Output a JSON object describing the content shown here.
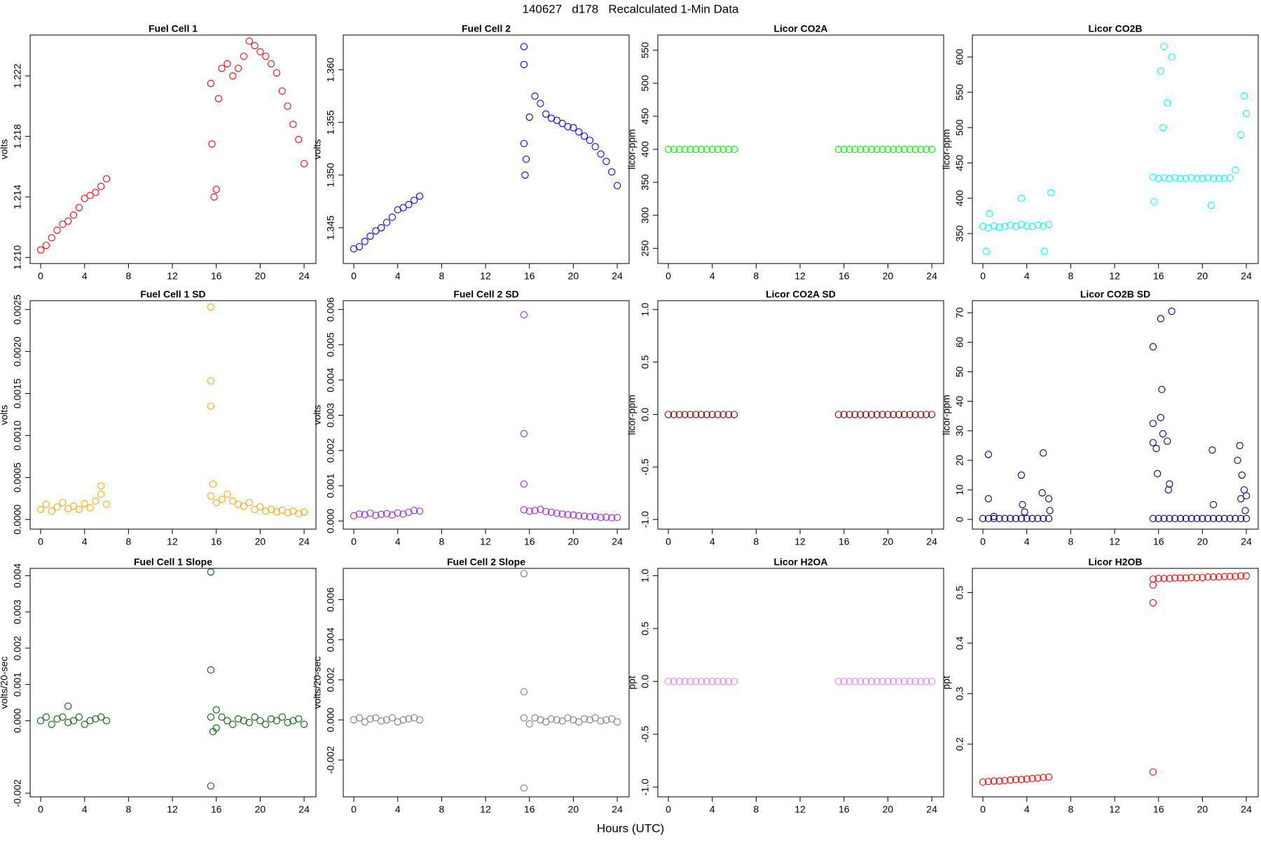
{
  "title": "140627   d178   Recalculated 1-Min Data",
  "xlabel": "Hours (UTC)",
  "chart_data": [
    {
      "type": "scatter",
      "title": "Fuel Cell 1",
      "ylabel": "volts",
      "color": "#ff0000",
      "xlim": [
        -0.96,
        25.08
      ],
      "xticks": [
        0,
        4,
        8,
        12,
        16,
        20,
        24
      ],
      "ylim": [
        1.2096,
        1.2247
      ],
      "yticks": [
        {
          "value": 1.21,
          "label": "1.210"
        },
        1.214,
        1.218,
        1.222
      ],
      "x": [
        0,
        0.5,
        1,
        1.5,
        2,
        2.5,
        3,
        3.5,
        4,
        4.5,
        5,
        5.5,
        6,
        15.5,
        16,
        16.5,
        17,
        17.5,
        18,
        18.5,
        19,
        19.5,
        20,
        20.5,
        21,
        21.5,
        22,
        22.5,
        23,
        23.5,
        24,
        15.6,
        15.8,
        16.2
      ],
      "values": [
        1.2105,
        1.2108,
        1.2113,
        1.2118,
        1.2122,
        1.2124,
        1.2128,
        1.2133,
        1.2139,
        1.2141,
        1.2143,
        1.2147,
        1.2152,
        1.2215,
        1.2145,
        1.2225,
        1.2228,
        1.222,
        1.2225,
        1.2233,
        1.2243,
        1.224,
        1.2236,
        1.2233,
        1.2228,
        1.2222,
        1.221,
        1.22,
        1.2188,
        1.2178,
        1.2162,
        1.2175,
        1.214,
        1.2205
      ]
    },
    {
      "type": "scatter",
      "title": "Fuel Cell 2",
      "ylabel": "volts",
      "color": "#0000ff",
      "xlim": [
        -0.96,
        25.08
      ],
      "xticks": [
        0,
        4,
        8,
        12,
        16,
        20,
        24
      ],
      "ylim": [
        1.3416,
        1.3633
      ],
      "yticks": [
        1.345,
        {
          "value": 1.35,
          "label": "1.350"
        },
        1.355,
        {
          "value": 1.36,
          "label": "1.360"
        }
      ],
      "x": [
        0,
        0.5,
        1,
        1.5,
        2,
        2.5,
        3,
        3.5,
        4,
        4.5,
        5,
        5.5,
        6,
        15.5,
        16,
        16.5,
        17,
        17.5,
        18,
        18.5,
        19,
        19.5,
        20,
        20.5,
        21,
        21.5,
        22,
        22.5,
        23,
        23.5,
        24,
        15.5,
        15.5,
        15.6,
        15.7
      ],
      "values": [
        1.343,
        1.3432,
        1.3437,
        1.3442,
        1.3447,
        1.345,
        1.3455,
        1.346,
        1.3467,
        1.3469,
        1.3472,
        1.3476,
        1.348,
        1.353,
        1.3555,
        1.3575,
        1.3568,
        1.3558,
        1.3554,
        1.3552,
        1.3549,
        1.3546,
        1.3545,
        1.3541,
        1.3537,
        1.3533,
        1.3527,
        1.352,
        1.3513,
        1.3503,
        1.349,
        1.3622,
        1.3605,
        1.35,
        1.3515
      ]
    },
    {
      "type": "scatter",
      "title": "Licor CO2A",
      "ylabel": "licor-ppm",
      "color": "#00ff00",
      "xlim": [
        -0.96,
        25.08
      ],
      "xticks": [
        0,
        4,
        8,
        12,
        16,
        20,
        24
      ],
      "ylim": [
        227,
        573
      ],
      "yticks": [
        250,
        300,
        350,
        400,
        450,
        500,
        550
      ],
      "x": [
        0,
        0.5,
        1,
        1.5,
        2,
        2.5,
        3,
        3.5,
        4,
        4.5,
        5,
        5.5,
        6,
        15.5,
        16,
        16.5,
        17,
        17.5,
        18,
        18.5,
        19,
        19.5,
        20,
        20.5,
        21,
        21.5,
        22,
        22.5,
        23,
        23.5,
        24
      ],
      "values": [
        400,
        400,
        400,
        400,
        400,
        400,
        400,
        400,
        400,
        400,
        400,
        400,
        400,
        400,
        400,
        400,
        400,
        400,
        400,
        400,
        400,
        400,
        400,
        400,
        400,
        400,
        400,
        400,
        400,
        400,
        400
      ]
    },
    {
      "type": "scatter",
      "title": "Licor CO2B",
      "ylabel": "licor-ppm",
      "color": "#00ffff",
      "xlim": [
        -0.96,
        25.08
      ],
      "xticks": [
        0,
        4,
        8,
        12,
        16,
        20,
        24
      ],
      "ylim": [
        307.6,
        631
      ],
      "yticks": [
        350,
        400,
        450,
        500,
        550,
        600
      ],
      "x": [
        0,
        0.5,
        1,
        1.5,
        2,
        2.5,
        3,
        3.5,
        4,
        4.5,
        5,
        5.5,
        6,
        15.5,
        16,
        16.5,
        17,
        17.5,
        18,
        18.5,
        19,
        19.5,
        20,
        20.5,
        21,
        21.5,
        22,
        22.5,
        23,
        23.5,
        24,
        0.3,
        0.6,
        3.5,
        5.6,
        6.2,
        15.6,
        16.2,
        16.5,
        16.8,
        17.2,
        16.4,
        20.8,
        23.8
      ],
      "values": [
        360,
        358,
        361,
        359,
        360,
        362,
        360,
        363,
        361,
        360,
        362,
        361,
        363,
        430,
        428,
        429,
        428,
        429,
        428,
        428,
        429,
        428,
        428,
        429,
        428,
        428,
        428,
        429,
        440,
        490,
        520,
        325,
        378,
        400,
        325,
        408,
        395,
        580,
        615,
        535,
        600,
        500,
        390,
        545
      ]
    },
    {
      "type": "scatter",
      "title": "Fuel Cell 1 SD",
      "ylabel": "volts",
      "color": "#ffa500",
      "xlim": [
        -0.96,
        25.08
      ],
      "xticks": [
        0,
        4,
        8,
        12,
        16,
        20,
        24
      ],
      "ylim": [
        -0.000115,
        0.002606
      ],
      "yticks": [
        {
          "value": 0,
          "label": "0.0000"
        },
        0.0005,
        {
          "value": 0.001,
          "label": "0.0010"
        },
        0.0015,
        {
          "value": 0.002,
          "label": "0.0020"
        },
        0.0025
      ],
      "x": [
        0,
        0.5,
        1,
        1.5,
        2,
        2.5,
        3,
        3.5,
        4,
        4.5,
        5,
        5.5,
        6,
        15.5,
        16,
        16.5,
        17,
        17.5,
        18,
        18.5,
        19,
        19.5,
        20,
        20.5,
        21,
        21.5,
        22,
        22.5,
        23,
        23.5,
        24,
        15.5,
        15.5,
        15.5,
        5.5,
        15.7
      ],
      "values": [
        0.00012,
        0.00018,
        0.0001,
        0.00015,
        0.0002,
        0.00013,
        0.00016,
        0.00012,
        0.00019,
        0.00014,
        0.00022,
        0.0003,
        0.00018,
        0.00028,
        0.0002,
        0.00024,
        0.0003,
        0.00022,
        0.00018,
        0.00016,
        0.0002,
        0.00012,
        0.00015,
        0.0001,
        0.00012,
        9e-05,
        0.00011,
        8e-05,
        0.0001,
        7e-05,
        9e-05,
        0.00253,
        0.00165,
        0.00135,
        0.0004,
        0.00042
      ]
    },
    {
      "type": "scatter",
      "title": "Fuel Cell 2 SD",
      "ylabel": "volts",
      "color": "#a020f0",
      "xlim": [
        -0.96,
        25.08
      ],
      "xticks": [
        0,
        4,
        8,
        12,
        16,
        20,
        24
      ],
      "ylim": [
        -0.00023,
        0.00625
      ],
      "yticks": [
        {
          "value": 0,
          "label": "0.000"
        },
        {
          "value": 0.001,
          "label": "0.001"
        },
        {
          "value": 0.002,
          "label": "0.002"
        },
        {
          "value": 0.003,
          "label": "0.003"
        },
        {
          "value": 0.004,
          "label": "0.004"
        },
        {
          "value": 0.005,
          "label": "0.005"
        },
        {
          "value": 0.006,
          "label": "0.006"
        }
      ],
      "x": [
        0,
        0.5,
        1,
        1.5,
        2,
        2.5,
        3,
        3.5,
        4,
        4.5,
        5,
        5.5,
        6,
        15.5,
        16,
        16.5,
        17,
        17.5,
        18,
        18.5,
        19,
        19.5,
        20,
        20.5,
        21,
        21.5,
        22,
        22.5,
        23,
        23.5,
        24,
        15.5,
        15.5,
        15.5
      ],
      "values": [
        0.00015,
        0.0002,
        0.00018,
        0.00022,
        0.00016,
        0.00019,
        0.00021,
        0.00017,
        0.00023,
        0.0002,
        0.00025,
        0.0003,
        0.00028,
        0.00032,
        0.00028,
        0.0003,
        0.00033,
        0.00027,
        0.00025,
        0.00022,
        0.0002,
        0.00018,
        0.00017,
        0.00015,
        0.00014,
        0.00012,
        0.00013,
        0.0001,
        0.00011,
        9e-05,
        0.0001,
        0.00585,
        0.00248,
        0.00105
      ]
    },
    {
      "type": "scatter",
      "title": "Licor CO2A SD",
      "ylabel": "licor-ppm",
      "color": "#8b0000",
      "xlim": [
        -0.96,
        25.08
      ],
      "xticks": [
        0,
        4,
        8,
        12,
        16,
        20,
        24
      ],
      "ylim": [
        -1.092,
        1.085
      ],
      "yticks": [
        {
          "value": -1,
          "label": "-1.0"
        },
        -0.5,
        {
          "value": 0,
          "label": "0.0"
        },
        0.5,
        {
          "value": 1,
          "label": "1.0"
        }
      ],
      "x": [
        0,
        0.5,
        1,
        1.5,
        2,
        2.5,
        3,
        3.5,
        4,
        4.5,
        5,
        5.5,
        6,
        15.5,
        16,
        16.5,
        17,
        17.5,
        18,
        18.5,
        19,
        19.5,
        20,
        20.5,
        21,
        21.5,
        22,
        22.5,
        23,
        23.5,
        24
      ],
      "values": [
        0,
        0,
        0,
        0,
        0,
        0,
        0,
        0,
        0,
        0,
        0,
        0,
        0,
        0,
        0,
        0,
        0,
        0,
        0,
        0,
        0,
        0,
        0,
        0,
        0,
        0,
        0,
        0,
        0,
        0,
        0
      ]
    },
    {
      "type": "scatter",
      "title": "Licor CO2B SD",
      "ylabel": "licor-ppm",
      "color": "#000080",
      "xlim": [
        -0.96,
        25.08
      ],
      "xticks": [
        0,
        4,
        8,
        12,
        16,
        20,
        24
      ],
      "ylim": [
        -3.3,
        74.1
      ],
      "yticks": [
        0,
        10,
        20,
        30,
        40,
        50,
        60,
        70
      ],
      "x": [
        0,
        0.5,
        1,
        1.5,
        2,
        2.5,
        3,
        3.5,
        4,
        4.5,
        5,
        5.5,
        6,
        15.5,
        16,
        16.5,
        17,
        17.5,
        18,
        18.5,
        19,
        19.5,
        20,
        20.5,
        21,
        21.5,
        22,
        22.5,
        23,
        23.5,
        24,
        0.5,
        0.5,
        1.0,
        3.5,
        3.6,
        3.8,
        5.5,
        5.4,
        6.0,
        6.1,
        15.5,
        15.5,
        15.5,
        15.8,
        16.2,
        16.3,
        16.2,
        16.4,
        16.8,
        17.0,
        16.9,
        17.2,
        15.9,
        20.9,
        21.0,
        23.2,
        23.4,
        23.6,
        23.8,
        23.5,
        23.9,
        24.0
      ],
      "values": [
        0.3,
        0.3,
        0.3,
        0.3,
        0.3,
        0.3,
        0.3,
        0.3,
        0.3,
        0.3,
        0.3,
        0.3,
        0.3,
        0.3,
        0.3,
        0.3,
        0.3,
        0.3,
        0.3,
        0.3,
        0.3,
        0.3,
        0.3,
        0.3,
        0.3,
        0.3,
        0.3,
        0.3,
        0.3,
        0.3,
        0.3,
        22,
        7,
        1,
        15,
        5,
        2.5,
        22.5,
        9,
        7,
        3,
        58.5,
        32.5,
        26,
        24,
        68,
        44,
        34.5,
        29,
        26.5,
        12,
        10,
        70.5,
        15.5,
        23.5,
        5,
        20,
        25,
        15,
        10,
        7,
        3,
        8
      ]
    },
    {
      "type": "scatter",
      "title": "Fuel Cell 1 Slope",
      "ylabel": "volts/20-sec",
      "color": "#006400",
      "xlim": [
        -0.96,
        25.08
      ],
      "xticks": [
        0,
        4,
        8,
        12,
        16,
        20,
        24
      ],
      "ylim": [
        -0.0021,
        0.0042
      ],
      "yticks": [
        -0.002,
        {
          "value": 0,
          "label": "0.000"
        },
        0.001,
        0.002,
        0.003,
        0.004
      ],
      "x": [
        0,
        0.5,
        1,
        1.5,
        2,
        2.5,
        3,
        3.5,
        4,
        4.5,
        5,
        5.5,
        6,
        15.5,
        16,
        16.5,
        17,
        17.5,
        18,
        18.5,
        19,
        19.5,
        20,
        20.5,
        21,
        21.5,
        22,
        22.5,
        23,
        23.5,
        24,
        15.5,
        15.5,
        15.5,
        2.5,
        15.7,
        16
      ],
      "values": [
        0,
        0.0001,
        -0.0001,
        5e-05,
        0.0001,
        -5e-05,
        0,
        0.0001,
        -0.0001,
        0,
        5e-05,
        0.0001,
        0,
        0.0001,
        -0.0002,
        0.0001,
        0,
        -0.0001,
        5e-05,
        0,
        -5e-05,
        0.0001,
        0,
        -0.0001,
        5e-05,
        0,
        0.0001,
        -5e-05,
        0,
        5e-05,
        -0.0001,
        0.0041,
        0.0014,
        -0.0018,
        0.0004,
        -0.0003,
        0.0003
      ]
    },
    {
      "type": "scatter",
      "title": "Fuel Cell 2 Slope",
      "ylabel": "volts/20-sec",
      "color": "#808080",
      "xlim": [
        -0.96,
        25.08
      ],
      "xticks": [
        0,
        4,
        8,
        12,
        16,
        20,
        24
      ],
      "ylim": [
        -0.00384,
        0.00756
      ],
      "yticks": [
        -0.002,
        {
          "value": 0,
          "label": "0.000"
        },
        0.002,
        0.004,
        0.006
      ],
      "x": [
        0,
        0.5,
        1,
        1.5,
        2,
        2.5,
        3,
        3.5,
        4,
        4.5,
        5,
        5.5,
        6,
        15.5,
        16,
        16.5,
        17,
        17.5,
        18,
        18.5,
        19,
        19.5,
        20,
        20.5,
        21,
        21.5,
        22,
        22.5,
        23,
        23.5,
        24,
        15.5,
        15.5,
        15.5
      ],
      "values": [
        0,
        0.0001,
        -0.0001,
        5e-05,
        0.0001,
        -5e-05,
        0,
        0.0001,
        -0.0001,
        0,
        5e-05,
        0.0001,
        0,
        0.0001,
        -0.0002,
        0.0001,
        0,
        -0.0001,
        5e-05,
        0,
        -5e-05,
        0.0001,
        0,
        -0.0001,
        5e-05,
        0,
        0.0001,
        -5e-05,
        0,
        5e-05,
        -0.0001,
        0.0073,
        0.0014,
        -0.0034
      ]
    },
    {
      "type": "scatter",
      "title": "Licor H2OA",
      "ylabel": "ppt",
      "color": "#ee82ee",
      "xlim": [
        -0.96,
        25.08
      ],
      "xticks": [
        0,
        4,
        8,
        12,
        16,
        20,
        24
      ],
      "ylim": [
        -1.092,
        1.069
      ],
      "yticks": [
        {
          "value": -1,
          "label": "-1.0"
        },
        -0.5,
        {
          "value": 0,
          "label": "0.0"
        },
        0.5,
        {
          "value": 1,
          "label": "1.0"
        }
      ],
      "x": [
        0,
        0.5,
        1,
        1.5,
        2,
        2.5,
        3,
        3.5,
        4,
        4.5,
        5,
        5.5,
        6,
        15.5,
        16,
        16.5,
        17,
        17.5,
        18,
        18.5,
        19,
        19.5,
        20,
        20.5,
        21,
        21.5,
        22,
        22.5,
        23,
        23.5,
        24
      ],
      "values": [
        0,
        0,
        0,
        0,
        0,
        0,
        0,
        0,
        0,
        0,
        0,
        0,
        0,
        0,
        0,
        0,
        0,
        0,
        0,
        0,
        0,
        0,
        0,
        0,
        0,
        0,
        0,
        0,
        0,
        0,
        0
      ]
    },
    {
      "type": "scatter",
      "title": "Licor H2OB",
      "ylabel": "ppt",
      "color": "#ff0000",
      "xlim": [
        -0.96,
        25.08
      ],
      "xticks": [
        0,
        4,
        8,
        12,
        16,
        20,
        24
      ],
      "ylim": [
        0.0957,
        0.548
      ],
      "yticks": [
        0.2,
        0.3,
        0.4,
        0.5
      ],
      "x": [
        0,
        0.5,
        1,
        1.5,
        2,
        2.5,
        3,
        3.5,
        4,
        4.5,
        5,
        5.5,
        6,
        15.5,
        16,
        16.5,
        17,
        17.5,
        18,
        18.5,
        19,
        19.5,
        20,
        20.5,
        21,
        21.5,
        22,
        22.5,
        23,
        23.5,
        24,
        15.5,
        15.5,
        15.5
      ],
      "values": [
        0.125,
        0.126,
        0.127,
        0.127,
        0.128,
        0.129,
        0.13,
        0.13,
        0.131,
        0.132,
        0.133,
        0.134,
        0.135,
        0.527,
        0.528,
        0.528,
        0.528,
        0.529,
        0.529,
        0.529,
        0.53,
        0.53,
        0.53,
        0.531,
        0.531,
        0.531,
        0.532,
        0.532,
        0.532,
        0.533,
        0.533,
        0.48,
        0.145,
        0.515
      ]
    }
  ]
}
